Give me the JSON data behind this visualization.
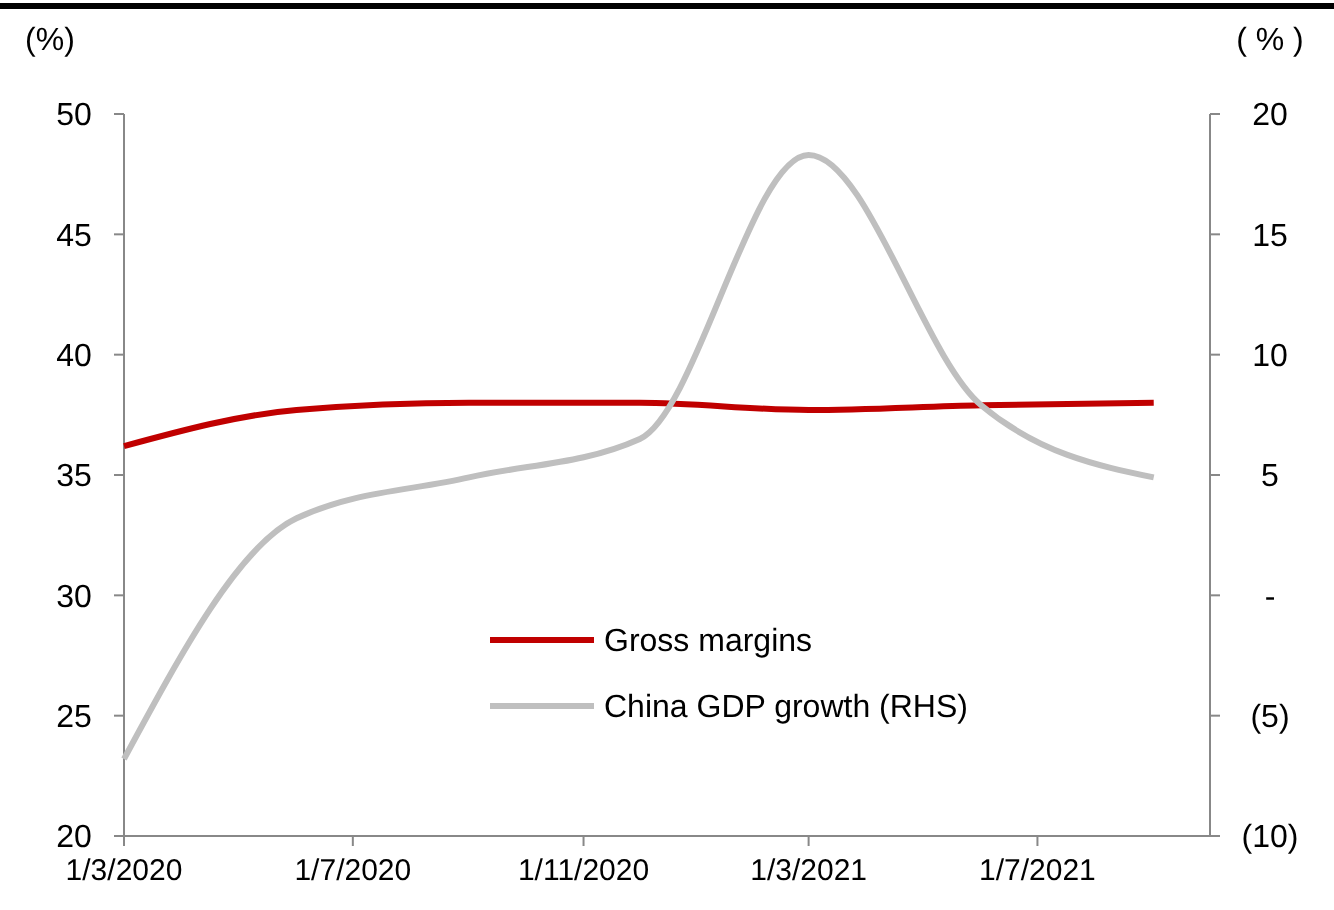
{
  "chart_data": {
    "type": "line",
    "ylabel": "(%)",
    "y2label": "( % )",
    "x": [
      "2020-03-01",
      "2020-06-01",
      "2020-09-01",
      "2020-12-01",
      "2021-03-01",
      "2021-06-01",
      "2021-09-01"
    ],
    "series": [
      {
        "name": "Gross margins",
        "color": "#c00000",
        "values": [
          36.2,
          37.7,
          38.0,
          38.0,
          37.7,
          37.9,
          38.0
        ]
      },
      {
        "name": "China GDP growth (RHS)",
        "color": "#bfbfbf",
        "axis": "y2",
        "values": [
          -6.8,
          3.2,
          4.9,
          6.5,
          18.3,
          7.9,
          4.9
        ]
      }
    ],
    "xlim": [
      "2020-03-01",
      "2021-10-01"
    ],
    "xticks": [
      {
        "value": "2020-03-01",
        "label": "1/3/2020"
      },
      {
        "value": "2020-07-01",
        "label": "1/7/2020"
      },
      {
        "value": "2020-11-01",
        "label": "1/11/2020"
      },
      {
        "value": "2021-03-01",
        "label": "1/3/2021"
      },
      {
        "value": "2021-07-01",
        "label": "1/7/2021"
      }
    ],
    "ylim": [
      20,
      50
    ],
    "yticks": [
      20,
      25,
      30,
      35,
      40,
      45,
      50
    ],
    "y2lim": [
      -10,
      20
    ],
    "y2ticks": [
      {
        "value": -10,
        "label": "(10)"
      },
      {
        "value": -5,
        "label": "(5)"
      },
      {
        "value": 0,
        "label": "-"
      },
      5,
      10,
      15,
      20
    ],
    "legend": "bottom",
    "grid": false,
    "marker": "none",
    "line_style": "solid"
  }
}
